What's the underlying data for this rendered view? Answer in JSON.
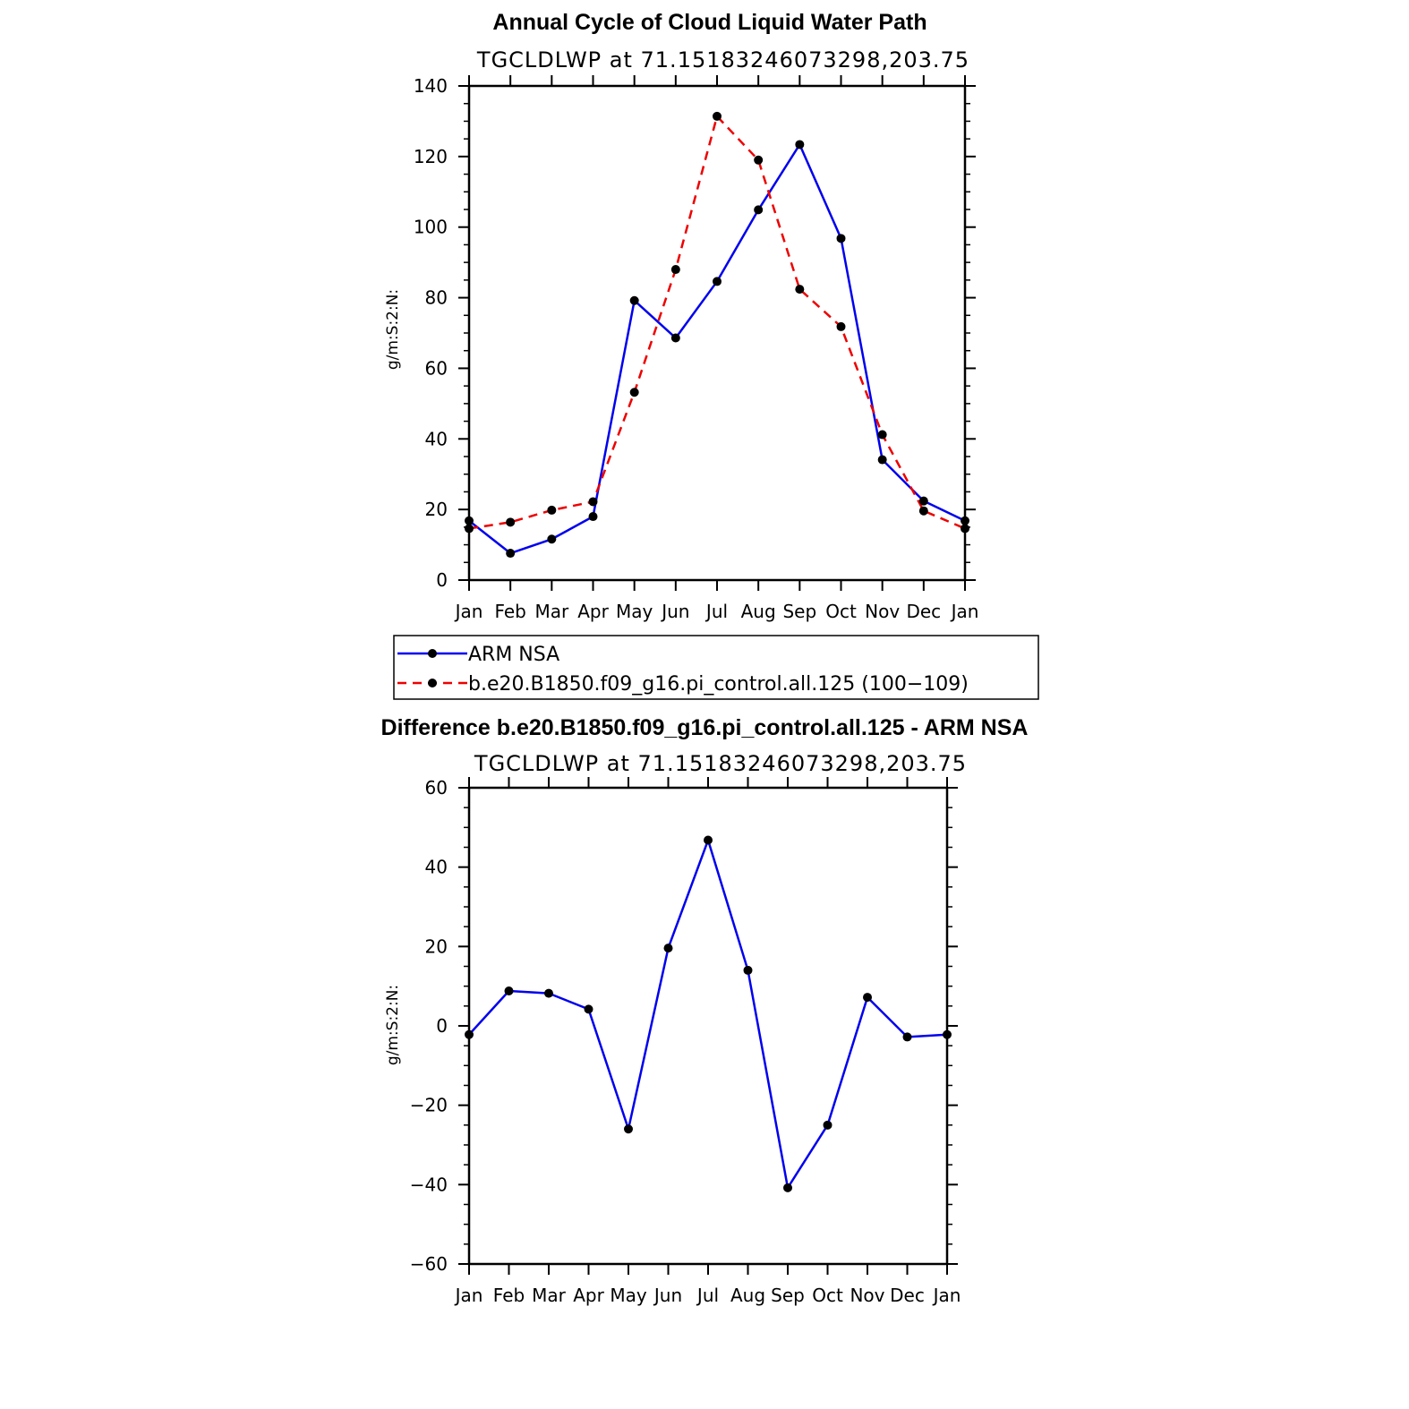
{
  "chart_data": [
    {
      "type": "line",
      "title": "Annual Cycle of Cloud Liquid Water Path",
      "subtitle": "TGCLDLWP at 71.15183246073298,203.75",
      "ylabel": "g/m:S:2:N:",
      "xlabel": "",
      "ylim": [
        0,
        140
      ],
      "yticks": [
        0,
        20,
        40,
        60,
        80,
        100,
        120,
        140
      ],
      "categories": [
        "Jan",
        "Feb",
        "Mar",
        "Apr",
        "May",
        "Jun",
        "Jul",
        "Aug",
        "Sep",
        "Oct",
        "Nov",
        "Dec",
        "Jan"
      ],
      "series": [
        {
          "name": "ARM NSA",
          "color": "#0000ee",
          "style": "solid",
          "values": [
            16.8,
            7.6,
            11.6,
            18.0,
            79.2,
            68.6,
            84.6,
            104.9,
            123.4,
            96.8,
            34.1,
            22.4,
            16.8
          ]
        },
        {
          "name": "b.e20.B1850.f09_g16.pi_control.all.125 (100−109)",
          "color": "#ee0000",
          "style": "dashed",
          "values": [
            14.6,
            16.4,
            19.8,
            22.2,
            53.2,
            88.0,
            131.4,
            119.0,
            82.4,
            71.8,
            41.2,
            19.6,
            14.6
          ]
        }
      ],
      "legend": "below"
    },
    {
      "type": "line",
      "title": "Difference b.e20.B1850.f09_g16.pi_control.all.125 - ARM NSA",
      "subtitle": "TGCLDLWP at 71.15183246073298,203.75",
      "ylabel": "g/m:S:2:N:",
      "xlabel": "",
      "ylim": [
        -60,
        60
      ],
      "yticks": [
        -60,
        -40,
        -20,
        0,
        20,
        40,
        60
      ],
      "categories": [
        "Jan",
        "Feb",
        "Mar",
        "Apr",
        "May",
        "Jun",
        "Jul",
        "Aug",
        "Sep",
        "Oct",
        "Nov",
        "Dec",
        "Jan"
      ],
      "series": [
        {
          "color": "#0000ee",
          "style": "solid",
          "values": [
            -2.2,
            8.8,
            8.2,
            4.2,
            -26.0,
            19.6,
            46.8,
            14.0,
            -40.8,
            -25.0,
            7.2,
            -2.8,
            -2.2
          ]
        }
      ]
    }
  ]
}
